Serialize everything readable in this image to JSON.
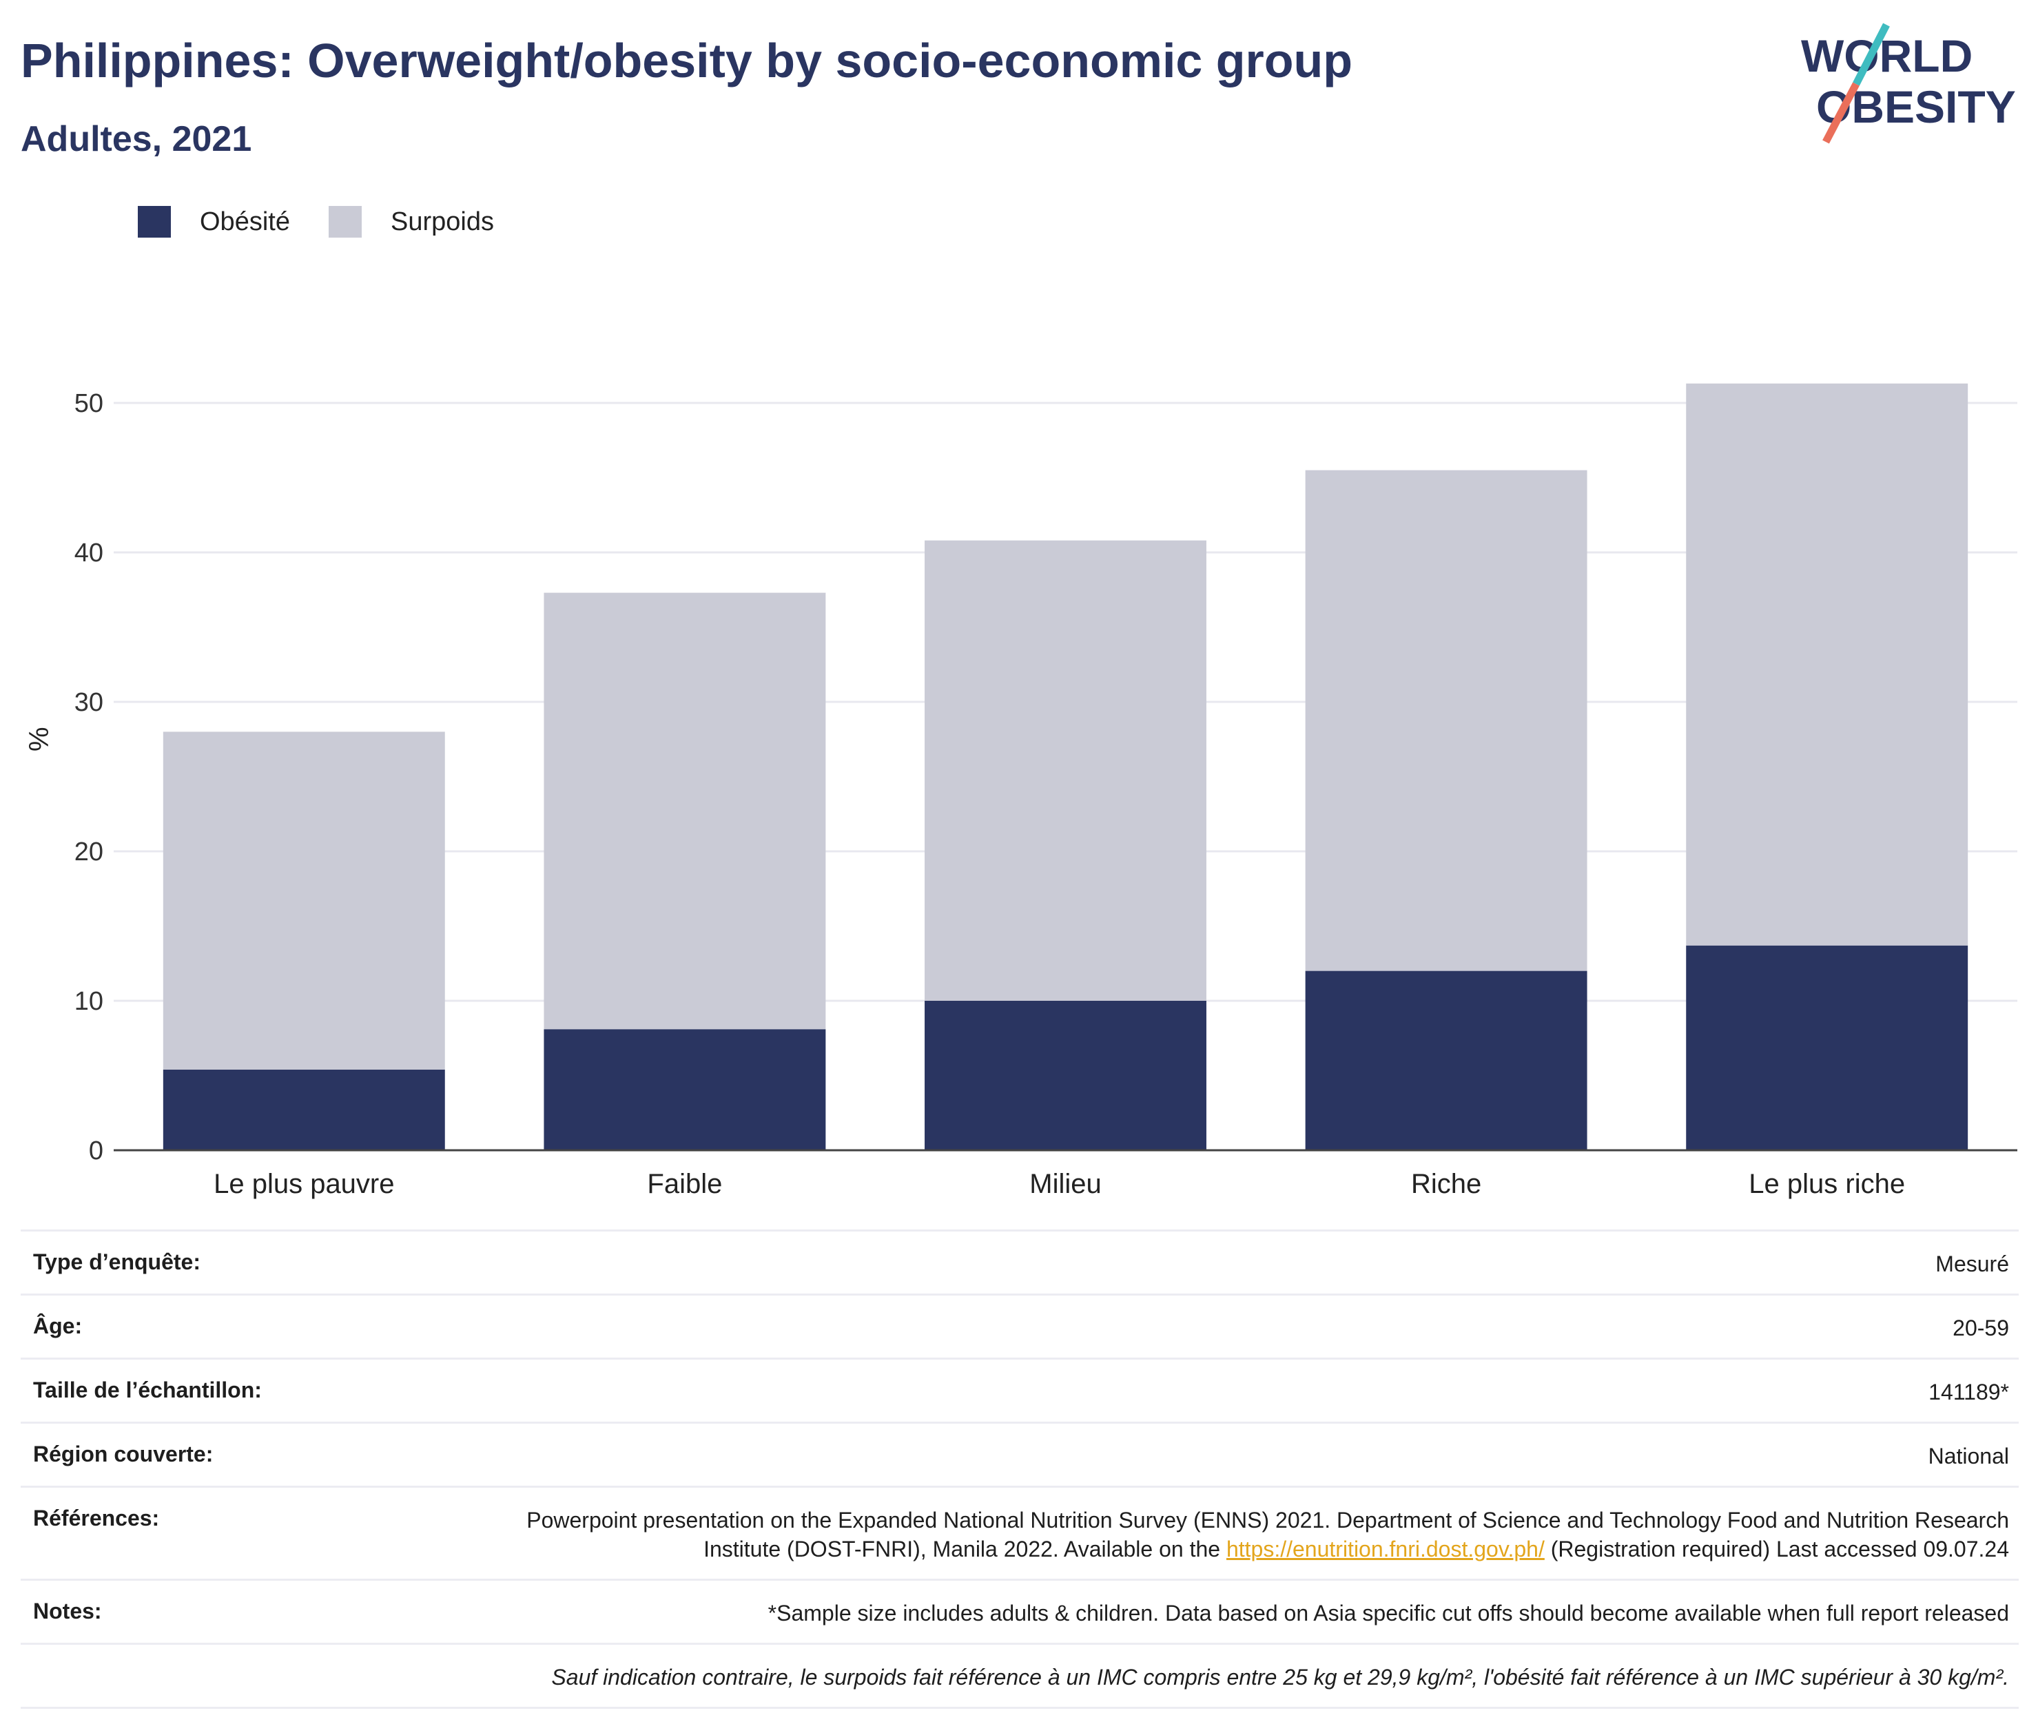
{
  "header": {
    "title": "Philippines: Overweight/obesity by socio-economic group",
    "subtitle": "Adultes, 2021"
  },
  "logo": {
    "line1": "WORLD",
    "line2": "OBESITY"
  },
  "colors": {
    "obesity": "#2a3561",
    "overweight": "#cacbd6",
    "accent_teal": "#3fbcc0",
    "accent_coral": "#ea6f5a",
    "link": "#e3a51c"
  },
  "chart_data": {
    "type": "bar",
    "stacked": true,
    "categories": [
      "Le plus pauvre",
      "Faible",
      "Milieu",
      "Riche",
      "Le plus riche"
    ],
    "series": [
      {
        "name": "Obésité",
        "values": [
          5.4,
          8.1,
          10.0,
          12.0,
          13.7
        ]
      },
      {
        "name": "Surpoids",
        "values": [
          22.6,
          29.2,
          30.8,
          33.5,
          37.6
        ]
      }
    ],
    "totals": [
      28.0,
      37.3,
      40.8,
      45.5,
      51.3
    ],
    "ylabel": "%",
    "ylim": [
      0,
      55
    ],
    "yticks": [
      0,
      10,
      20,
      30,
      40,
      50
    ],
    "grid": true,
    "legend": "top-left"
  },
  "info": {
    "survey_type_label": "Type d’enquête:",
    "survey_type": "Mesuré",
    "age_label": "Âge:",
    "age": "20-59",
    "sample_label": "Taille de l’échantillon:",
    "sample": "141189*",
    "region_label": "Région couverte:",
    "region": "National",
    "refs_label": "Références:",
    "refs_before": "Powerpoint presentation on the Expanded National Nutrition Survey (ENNS) 2021. Department of Science and Technology Food and Nutrition Research Institute (DOST-FNRI), Manila 2022. Available on the ",
    "refs_link": "https://enutrition.fnri.dost.gov.ph/",
    "refs_after": " (Registration required) Last accessed 09.07.24",
    "notes_label": "Notes:",
    "notes": "*Sample size includes adults & children. Data based on Asia specific cut offs should become available when full report released",
    "definition": "Sauf indication contraire, le surpoids fait référence à un IMC compris entre 25 kg et 29,9 kg/m², l'obésité fait référence à un IMC supérieur à 30 kg/m²."
  }
}
